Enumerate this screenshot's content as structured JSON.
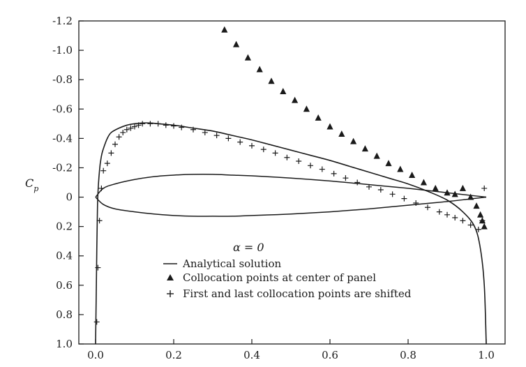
{
  "chart_data": {
    "type": "line",
    "title": "",
    "xlabel": "",
    "ylabel": "C_p",
    "ylabel_main": "C",
    "ylabel_sub": "p",
    "xlim": [
      0.0,
      1.0
    ],
    "ylim": [
      1.0,
      -1.2
    ],
    "y_inverted": true,
    "grid": false,
    "legend_placement": "lower-center",
    "x_tick_labels": [
      "0.0",
      "0.2",
      "0.4",
      "0.6",
      "0.8",
      "1.0"
    ],
    "x_ticks": [
      0.0,
      0.2,
      0.4,
      0.6,
      0.8,
      1.0
    ],
    "y_tick_labels": [
      "-1.2",
      "-1.0",
      "-0.8",
      "-0.6",
      "-0.4",
      "-0.2",
      "0",
      "0.2",
      "0.4",
      "0.6",
      "0.8",
      "1.0"
    ],
    "y_ticks": [
      -1.2,
      -1.0,
      -0.8,
      -0.6,
      -0.4,
      -0.2,
      0.0,
      0.2,
      0.4,
      0.6,
      0.8,
      1.0
    ],
    "annotation": "α = 0",
    "series": [
      {
        "name": "Analytical solution",
        "kind": "line",
        "x": [
          0.0,
          0.002,
          0.005,
          0.01,
          0.015,
          0.02,
          0.03,
          0.04,
          0.06,
          0.08,
          0.1,
          0.12,
          0.14,
          0.16,
          0.2,
          0.25,
          0.3,
          0.35,
          0.4,
          0.45,
          0.5,
          0.55,
          0.6,
          0.65,
          0.7,
          0.75,
          0.8,
          0.85,
          0.9,
          0.94,
          0.97,
          0.985,
          0.995,
          1.0
        ],
        "y": [
          1.0,
          0.6,
          0.05,
          -0.18,
          -0.28,
          -0.33,
          -0.4,
          -0.44,
          -0.47,
          -0.49,
          -0.5,
          -0.505,
          -0.505,
          -0.5,
          -0.49,
          -0.47,
          -0.45,
          -0.42,
          -0.39,
          -0.355,
          -0.32,
          -0.285,
          -0.25,
          -0.21,
          -0.17,
          -0.13,
          -0.09,
          -0.04,
          0.02,
          0.1,
          0.2,
          0.35,
          0.6,
          1.0
        ]
      },
      {
        "name": "Collocation points at center of panel",
        "kind": "marker",
        "marker": "triangle",
        "x": [
          0.33,
          0.36,
          0.39,
          0.42,
          0.45,
          0.48,
          0.51,
          0.54,
          0.57,
          0.6,
          0.63,
          0.66,
          0.69,
          0.72,
          0.75,
          0.78,
          0.81,
          0.84,
          0.87,
          0.9,
          0.92,
          0.94,
          0.96,
          0.975,
          0.985,
          0.99,
          0.995
        ],
        "y": [
          -1.14,
          -1.04,
          -0.95,
          -0.87,
          -0.79,
          -0.72,
          -0.66,
          -0.6,
          -0.54,
          -0.48,
          -0.43,
          -0.38,
          -0.33,
          -0.28,
          -0.23,
          -0.19,
          -0.15,
          -0.1,
          -0.06,
          -0.03,
          -0.02,
          -0.06,
          0.0,
          0.06,
          0.12,
          0.16,
          0.2
        ]
      },
      {
        "name": "First and last collocation points are shifted",
        "kind": "marker",
        "marker": "plus",
        "x": [
          0.003,
          0.006,
          0.01,
          0.015,
          0.02,
          0.03,
          0.04,
          0.05,
          0.06,
          0.07,
          0.08,
          0.09,
          0.1,
          0.11,
          0.12,
          0.14,
          0.16,
          0.18,
          0.2,
          0.22,
          0.25,
          0.28,
          0.31,
          0.34,
          0.37,
          0.4,
          0.43,
          0.46,
          0.49,
          0.52,
          0.55,
          0.58,
          0.61,
          0.64,
          0.67,
          0.7,
          0.73,
          0.76,
          0.79,
          0.82,
          0.85,
          0.88,
          0.9,
          0.92,
          0.94,
          0.96,
          0.98,
          0.99,
          0.995
        ],
        "y": [
          0.85,
          0.48,
          0.16,
          -0.06,
          -0.18,
          -0.23,
          -0.3,
          -0.36,
          -0.41,
          -0.44,
          -0.46,
          -0.47,
          -0.48,
          -0.49,
          -0.5,
          -0.5,
          -0.5,
          -0.49,
          -0.485,
          -0.475,
          -0.46,
          -0.44,
          -0.42,
          -0.4,
          -0.375,
          -0.35,
          -0.325,
          -0.3,
          -0.27,
          -0.245,
          -0.215,
          -0.19,
          -0.16,
          -0.13,
          -0.1,
          -0.07,
          -0.05,
          -0.02,
          0.01,
          0.04,
          0.07,
          0.1,
          0.12,
          0.14,
          0.16,
          0.19,
          0.22,
          0.16,
          -0.06
        ]
      }
    ]
  },
  "airfoil": {
    "upper": {
      "x": [
        0.0,
        0.02,
        0.05,
        0.1,
        0.15,
        0.2,
        0.25,
        0.3,
        0.35,
        0.4,
        0.5,
        0.6,
        0.7,
        0.8,
        0.9,
        0.95,
        1.0
      ],
      "y": [
        0.0,
        -0.06,
        -0.09,
        -0.12,
        -0.14,
        -0.15,
        -0.155,
        -0.155,
        -0.15,
        -0.145,
        -0.13,
        -0.11,
        -0.085,
        -0.06,
        -0.03,
        -0.015,
        0.0
      ]
    },
    "lower": {
      "x": [
        0.0,
        0.02,
        0.05,
        0.1,
        0.15,
        0.2,
        0.25,
        0.3,
        0.35,
        0.4,
        0.5,
        0.6,
        0.7,
        0.8,
        0.9,
        0.95,
        1.0
      ],
      "y": [
        0.0,
        0.05,
        0.08,
        0.1,
        0.115,
        0.125,
        0.13,
        0.13,
        0.13,
        0.125,
        0.115,
        0.1,
        0.08,
        0.055,
        0.03,
        0.015,
        0.0
      ]
    }
  },
  "legend": {
    "analytical": "Analytical solution",
    "center": "Collocation points at center of panel",
    "shifted": "First and last collocation points are shifted"
  },
  "colors": {
    "ink": "#1a1a1a",
    "background": "#ffffff"
  }
}
